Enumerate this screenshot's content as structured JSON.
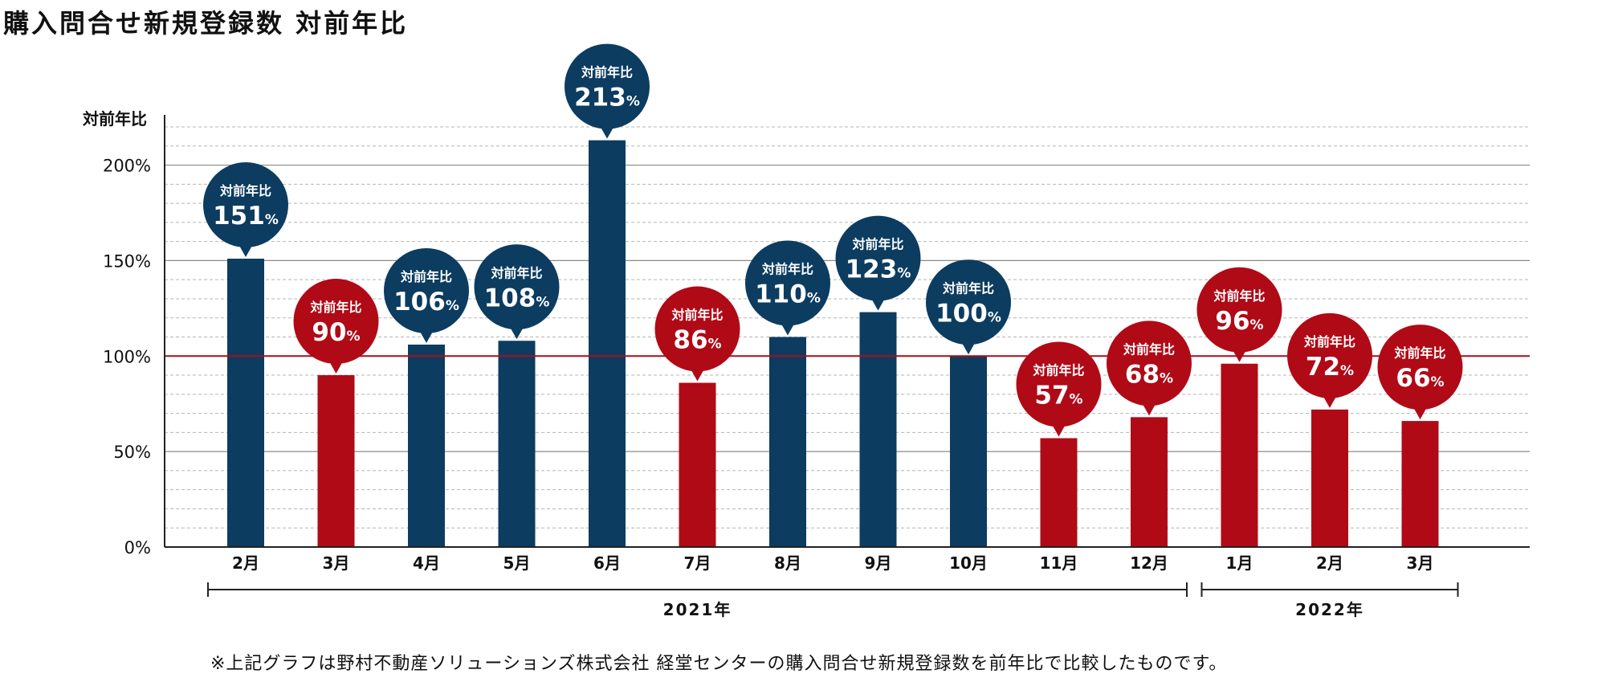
{
  "title": "購入問合せ新規登録数 対前年比",
  "footnote": "※上記グラフは野村不動産ソリューションズ株式会社 経堂センターの購入問合せ新規登録数を前年比で比較したものです。",
  "colors": {
    "above_100": "#0c3c60",
    "below_100": "#b00a17",
    "reference_line": "#b00a17",
    "axis": "#222222",
    "grid_major": "#8a8a8a",
    "grid_minor": "#b5b5b5"
  },
  "chart_data": {
    "type": "bar",
    "title": "購入問合せ新規登録数 対前年比",
    "ylabel": "対前年比",
    "xlabel": "",
    "ylim": [
      0,
      220
    ],
    "y_ticks": [
      {
        "value": 0,
        "label": "0%"
      },
      {
        "value": 50,
        "label": "50%"
      },
      {
        "value": 100,
        "label": "100%"
      },
      {
        "value": 150,
        "label": "150%"
      },
      {
        "value": 200,
        "label": "200%"
      }
    ],
    "minor_grid_step": 10,
    "reference_line": 100,
    "grid": true,
    "categories": [
      "2月",
      "3月",
      "4月",
      "5月",
      "6月",
      "7月",
      "8月",
      "9月",
      "10月",
      "11月",
      "12月",
      "1月",
      "2月",
      "3月"
    ],
    "values": [
      151,
      90,
      106,
      108,
      213,
      86,
      110,
      123,
      100,
      57,
      68,
      96,
      72,
      66
    ],
    "bubble_label": "対前年比",
    "unit": "%",
    "year_groups": [
      {
        "label": "2021年",
        "from": 0,
        "to": 10
      },
      {
        "label": "2022年",
        "from": 11,
        "to": 13
      }
    ]
  }
}
